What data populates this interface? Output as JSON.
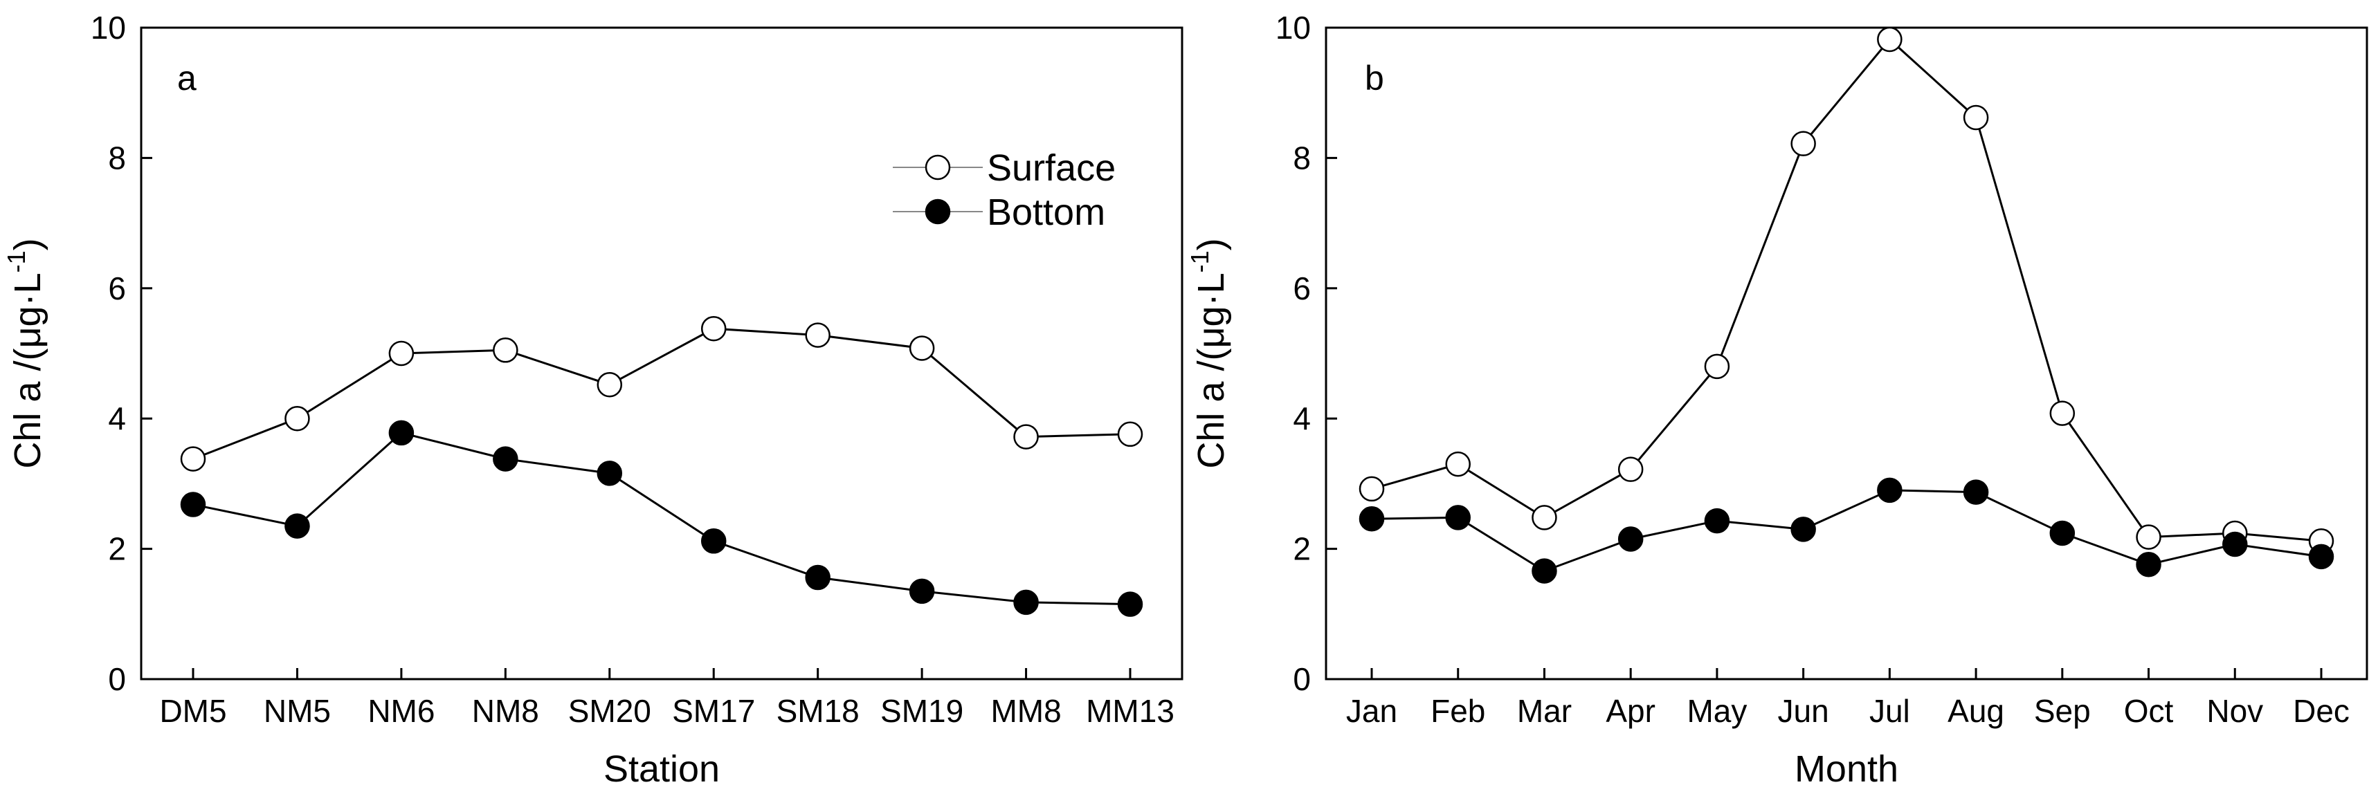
{
  "chart_data": [
    {
      "type": "line",
      "panel_label": "a",
      "title": "",
      "xlabel": "Station",
      "ylabel_main": "Chl a /(μg·L",
      "ylabel_sup": "-1",
      "ylabel_close": ")",
      "categories": [
        "DM5",
        "NM5",
        "NM6",
        "NM8",
        "SM20",
        "SM17",
        "SM18",
        "SM19",
        "MM8",
        "MM13"
      ],
      "ylim": [
        0,
        10
      ],
      "yticks": [
        "0",
        "2",
        "4",
        "6",
        "8",
        "10"
      ],
      "grid": false,
      "legend_position": "top-right",
      "series": [
        {
          "name": "Surface",
          "marker": "open-circle",
          "values": [
            3.38,
            4.0,
            5.0,
            5.05,
            4.52,
            5.38,
            5.28,
            5.08,
            3.72,
            3.76
          ]
        },
        {
          "name": "Bottom",
          "marker": "filled-circle",
          "values": [
            2.68,
            2.35,
            3.78,
            3.38,
            3.16,
            2.12,
            1.56,
            1.35,
            1.18,
            1.15
          ]
        }
      ]
    },
    {
      "type": "line",
      "panel_label": "b",
      "title": "",
      "xlabel": "Month",
      "ylabel_main": "Chl a /(μg·L",
      "ylabel_sup": "-1",
      "ylabel_close": ")",
      "categories": [
        "Jan",
        "Feb",
        "Mar",
        "Apr",
        "May",
        "Jun",
        "Jul",
        "Aug",
        "Sep",
        "Oct",
        "Nov",
        "Dec"
      ],
      "ylim": [
        0,
        10
      ],
      "yticks": [
        "0",
        "2",
        "4",
        "6",
        "8",
        "10"
      ],
      "grid": false,
      "legend_position": "none",
      "series": [
        {
          "name": "Surface",
          "marker": "open-circle",
          "values": [
            2.92,
            3.3,
            2.48,
            3.22,
            4.8,
            8.22,
            9.82,
            8.62,
            4.08,
            2.18,
            2.24,
            2.12
          ]
        },
        {
          "name": "Bottom",
          "marker": "filled-circle",
          "values": [
            2.46,
            2.48,
            1.66,
            2.15,
            2.43,
            2.3,
            2.9,
            2.87,
            2.24,
            1.76,
            2.07,
            1.88
          ]
        }
      ]
    }
  ]
}
